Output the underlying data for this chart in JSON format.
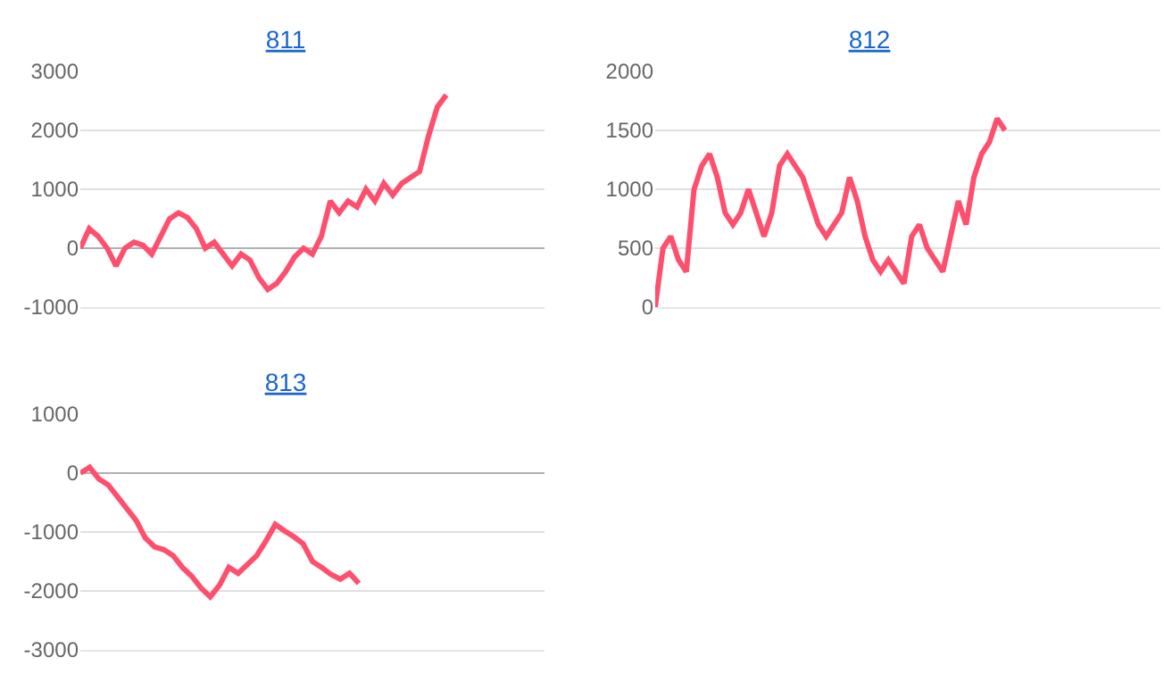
{
  "chart_data": [
    {
      "type": "line",
      "title": "811",
      "color": "#ff4f6e",
      "ylim": [
        -1000,
        3000
      ],
      "yticks": [
        -1000,
        0,
        1000,
        2000,
        3000
      ],
      "grid": "y",
      "tick_labels": "y",
      "marker": "none",
      "categories": [
        null,
        null,
        null,
        null,
        null,
        null,
        null,
        null,
        null,
        null,
        null,
        null,
        null,
        null,
        null,
        null,
        null,
        null,
        null,
        null,
        null,
        null,
        null,
        null,
        null,
        null,
        null,
        null,
        null,
        null,
        null,
        null,
        null,
        null,
        null,
        null,
        null,
        null,
        null,
        null,
        null,
        null,
        null,
        null,
        null,
        null,
        null,
        null,
        null,
        null,
        null,
        null,
        null
      ],
      "values": [
        0,
        330,
        200,
        0,
        -300,
        0,
        100,
        50,
        -100,
        200,
        500,
        600,
        520,
        330,
        0,
        100,
        -100,
        -300,
        -100,
        -200,
        -500,
        -700,
        -600,
        -400,
        -150,
        0,
        -100,
        200,
        800,
        600,
        800,
        700,
        1000,
        800,
        1100,
        900,
        1100,
        1200,
        1300,
        1900,
        2400,
        2600,
        null,
        null,
        null,
        null,
        null,
        null,
        null,
        null,
        null,
        null,
        null
      ]
    },
    {
      "type": "line",
      "title": "812",
      "color": "#ff4f6e",
      "ylim": [
        0,
        2000
      ],
      "yticks": [
        0,
        500,
        1000,
        1500,
        2000
      ],
      "grid": "y",
      "tick_labels": "y",
      "marker": "none",
      "categories": [
        null,
        null,
        null,
        null,
        null,
        null,
        null,
        null,
        null,
        null,
        null,
        null,
        null,
        null,
        null,
        null,
        null,
        null,
        null,
        null,
        null,
        null,
        null,
        null,
        null,
        null,
        null,
        null,
        null,
        null,
        null,
        null,
        null,
        null,
        null,
        null,
        null,
        null,
        null,
        null,
        null,
        null,
        null,
        null,
        null,
        null,
        null,
        null,
        null,
        null,
        null,
        null,
        null,
        null,
        null,
        null,
        null,
        null,
        null,
        null,
        null,
        null,
        null,
        null,
        null,
        null
      ],
      "values": [
        0,
        500,
        600,
        400,
        300,
        1000,
        1200,
        1300,
        1100,
        800,
        700,
        800,
        1000,
        800,
        600,
        800,
        1200,
        1300,
        1200,
        1100,
        900,
        700,
        600,
        700,
        800,
        1100,
        900,
        600,
        400,
        300,
        400,
        300,
        200,
        600,
        700,
        500,
        400,
        300,
        600,
        900,
        700,
        1100,
        1300,
        1400,
        1600,
        1500,
        null,
        null,
        null,
        null,
        null,
        null,
        null,
        null,
        null,
        null,
        null,
        null,
        null,
        null,
        null,
        null,
        null,
        null,
        null,
        null
      ]
    },
    {
      "type": "line",
      "title": "813",
      "color": "#ff4f6e",
      "ylim": [
        -3000,
        1000
      ],
      "yticks": [
        -3000,
        -2000,
        -1000,
        0,
        1000
      ],
      "grid": "y",
      "tick_labels": "y",
      "marker": "none",
      "categories": [
        null,
        null,
        null,
        null,
        null,
        null,
        null,
        null,
        null,
        null,
        null,
        null,
        null,
        null,
        null,
        null,
        null,
        null,
        null,
        null,
        null,
        null,
        null,
        null,
        null,
        null,
        null,
        null,
        null,
        null,
        null,
        null,
        null,
        null,
        null,
        null,
        null,
        null,
        null,
        null,
        null,
        null,
        null,
        null,
        null,
        null,
        null,
        null,
        null,
        null,
        null
      ],
      "values": [
        0,
        100,
        -100,
        -200,
        -400,
        -600,
        -800,
        -1100,
        -1250,
        -1300,
        -1400,
        -1600,
        -1750,
        -1950,
        -2100,
        -1900,
        -1600,
        -1700,
        -1550,
        -1400,
        -1150,
        -870,
        -980,
        -1080,
        -1200,
        -1500,
        -1600,
        -1720,
        -1800,
        -1700,
        -1870,
        null,
        null,
        null,
        null,
        null,
        null,
        null,
        null,
        null,
        null,
        null,
        null,
        null,
        null,
        null,
        null,
        null,
        null,
        null,
        null
      ]
    }
  ]
}
